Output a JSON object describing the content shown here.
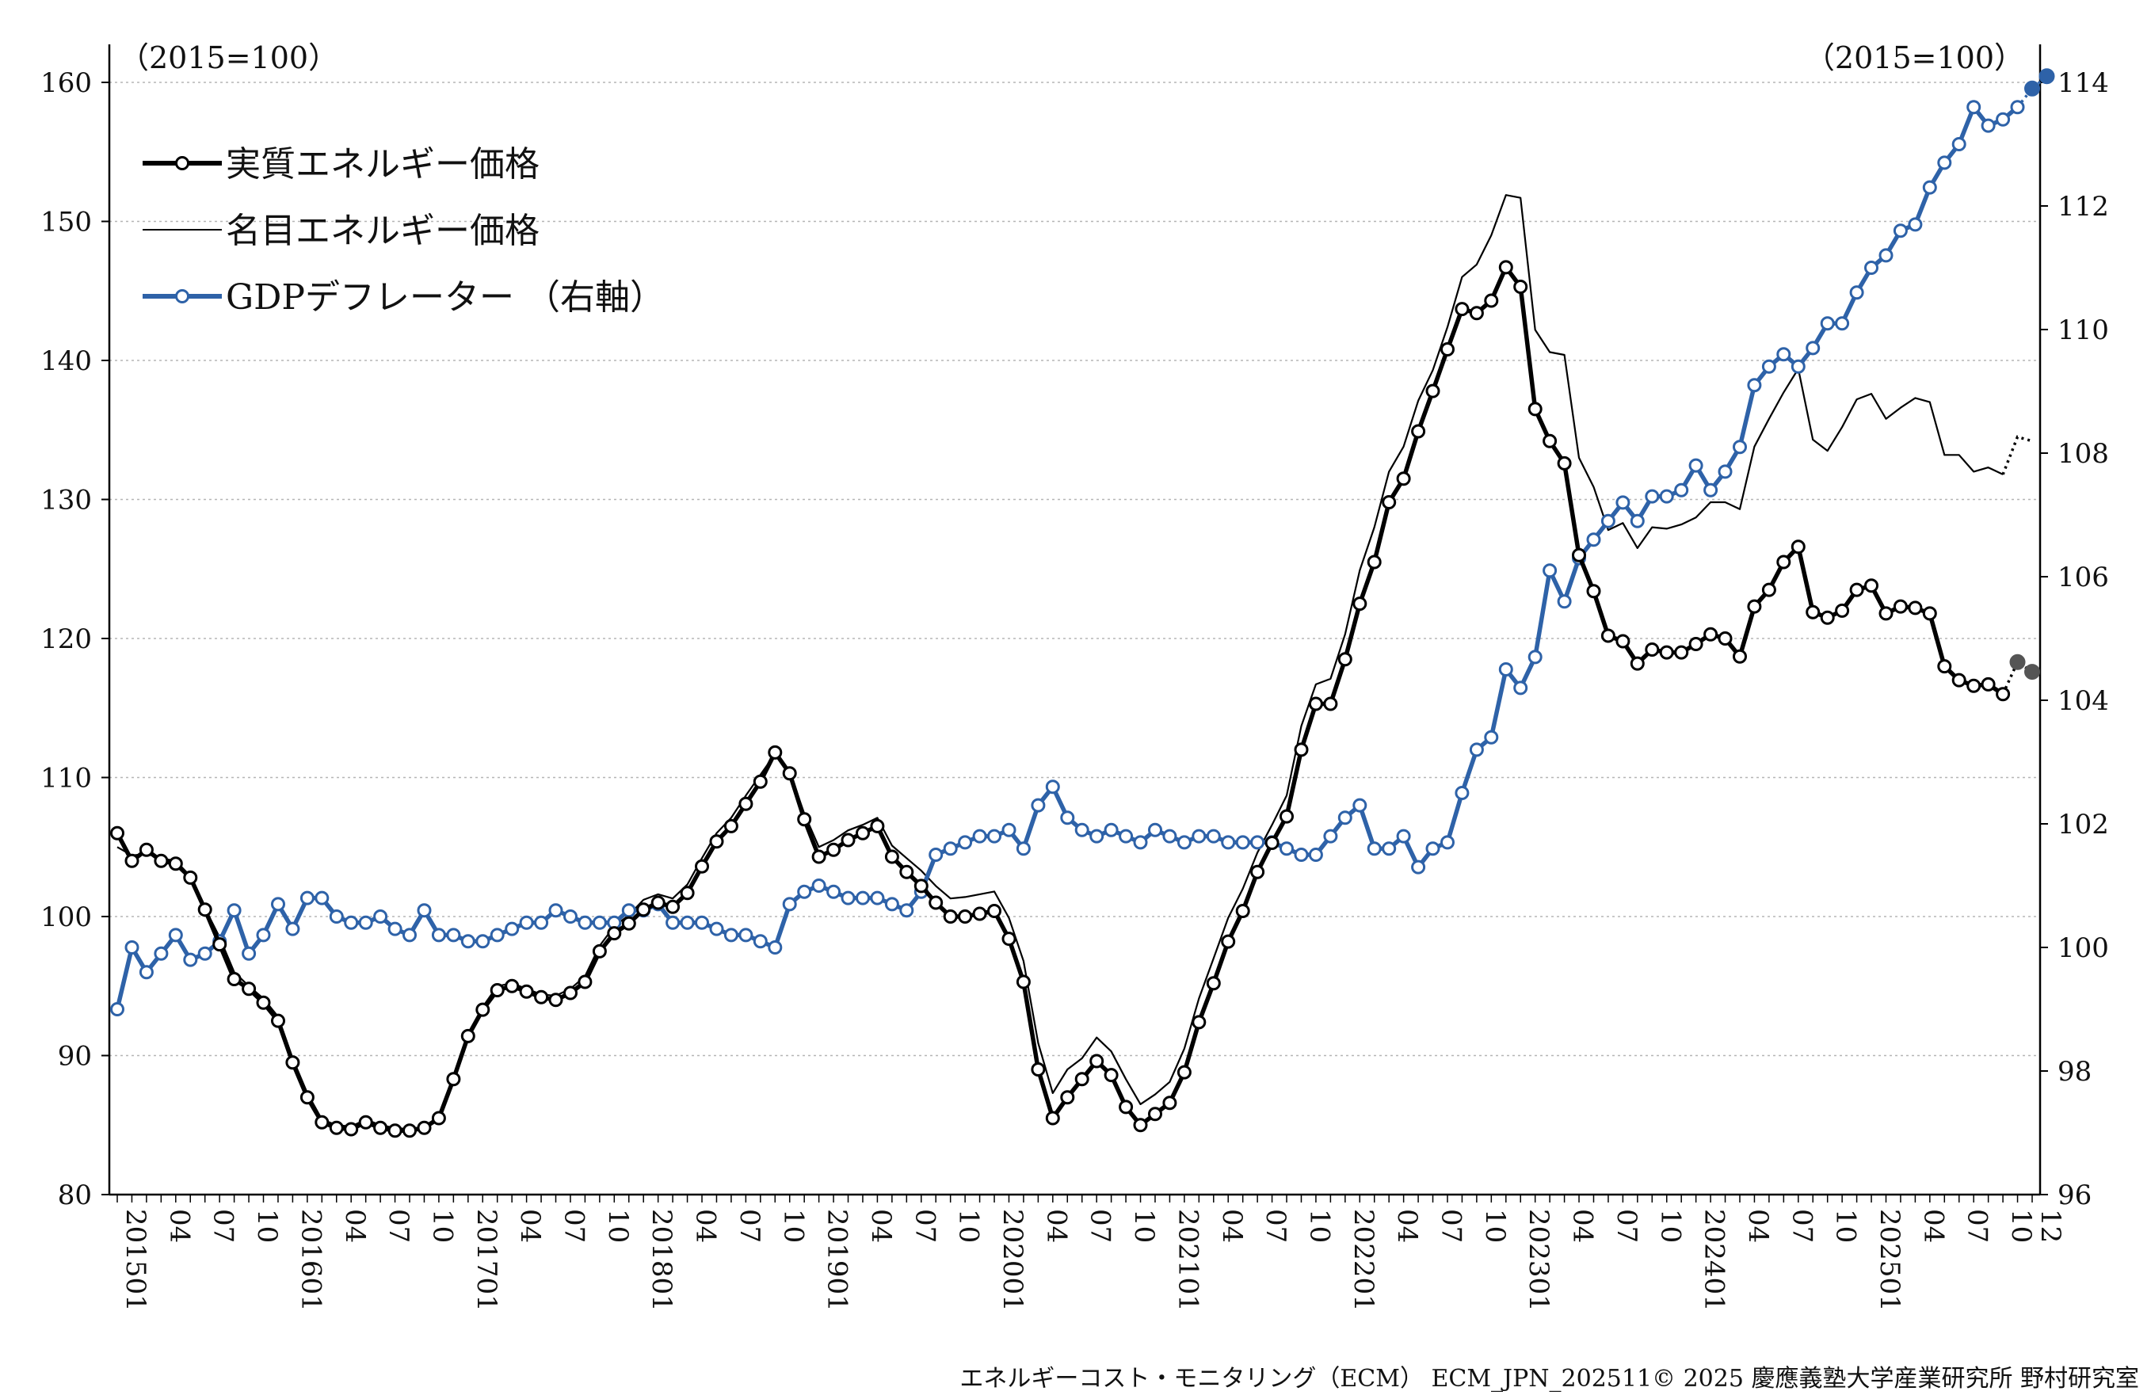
{
  "chart_data": {
    "type": "line",
    "left_unit": "（2015=100）",
    "right_unit": "（2015=100）",
    "left_axis": {
      "min": 80,
      "max": 160,
      "step": 10,
      "ticks": [
        "80",
        "90",
        "100",
        "110",
        "120",
        "130",
        "140",
        "150",
        "160"
      ]
    },
    "right_axis": {
      "min": 96,
      "max": 114,
      "step": 2,
      "ticks": [
        "96",
        "98",
        "100",
        "102",
        "104",
        "106",
        "108",
        "110",
        "112",
        "114"
      ]
    },
    "x_start": "2015-01",
    "x_end": "2025-12",
    "x_tick_labels": [
      "201501",
      "04",
      "07",
      "10",
      "201601",
      "04",
      "07",
      "10",
      "201701",
      "04",
      "07",
      "10",
      "201801",
      "04",
      "07",
      "10",
      "201901",
      "04",
      "07",
      "10",
      "202001",
      "04",
      "07",
      "10",
      "202101",
      "04",
      "07",
      "10",
      "202201",
      "04",
      "07",
      "10",
      "202301",
      "04",
      "07",
      "10",
      "202401",
      "04",
      "07",
      "10",
      "202501",
      "04",
      "07",
      "10",
      "12"
    ],
    "grid": "horizontal-dotted",
    "legend_position": "top-left",
    "series": [
      {
        "name": "実質エネルギー価格",
        "axis": "left",
        "color": "#000000",
        "values": [
          106,
          104,
          104.8,
          104,
          103.8,
          102.8,
          100.5,
          98,
          95.5,
          94.8,
          93.8,
          92.5,
          89.5,
          87,
          85.2,
          84.8,
          84.7,
          85.2,
          84.8,
          84.6,
          84.6,
          84.8,
          85.5,
          88.3,
          91.4,
          93.3,
          94.7,
          95,
          94.6,
          94.2,
          94,
          94.5,
          95.3,
          97.5,
          98.8,
          99.5,
          100.5,
          101,
          100.7,
          101.7,
          103.6,
          105.4,
          106.5,
          108.1,
          109.7,
          111.8,
          110.3,
          107,
          104.3,
          104.8,
          105.5,
          106,
          106.5,
          104.3,
          103.2,
          102.2,
          101,
          100,
          100,
          100.2,
          100.4,
          98.4,
          95.3,
          89,
          85.5,
          87,
          88.3,
          89.6,
          88.6,
          86.3,
          85,
          85.8,
          86.6,
          88.8,
          92.4,
          95.2,
          98.2,
          100.4,
          103.2,
          105.3,
          107.2,
          112,
          115.3,
          115.3,
          118.5,
          122.5,
          125.5,
          129.8,
          131.5,
          134.9,
          137.8,
          140.8,
          143.7,
          143.4,
          144.3,
          146.7,
          145.3,
          136.5,
          134.2,
          132.6,
          126,
          123.4,
          120.2,
          119.8,
          118.2,
          119.2,
          119,
          119,
          119.6,
          120.3,
          120,
          118.7,
          122.3,
          123.5,
          125.5,
          126.6,
          121.9,
          121.5,
          122,
          123.5,
          123.8,
          121.8,
          122.3,
          122.2,
          121.8,
          118,
          117,
          116.6,
          116.7,
          116
        ],
        "forecast": [
          118.3,
          117.6
        ]
      },
      {
        "name": "名目エネルギー価格",
        "axis": "left",
        "color": "#000000",
        "values": [
          105,
          104.4,
          104.5,
          104.2,
          104,
          102.9,
          100.6,
          98.5,
          96,
          95,
          94.1,
          92.8,
          89.8,
          87.3,
          85.4,
          85,
          84.9,
          85.4,
          85,
          84.8,
          84.7,
          84.9,
          85.6,
          88.4,
          91.6,
          93.5,
          95,
          95.2,
          94.8,
          94.4,
          94.3,
          94.8,
          95.7,
          97.9,
          99.3,
          100.1,
          101.2,
          101.6,
          101.3,
          102.3,
          104.2,
          106,
          107.1,
          108.7,
          110.2,
          111.7,
          110.4,
          107.4,
          105,
          105.5,
          106.2,
          106.6,
          107.1,
          105.1,
          104.2,
          103.3,
          102.2,
          101.3,
          101.4,
          101.6,
          101.8,
          99.9,
          96.8,
          90.9,
          87.3,
          89,
          89.8,
          91.3,
          90.3,
          88.3,
          86.5,
          87.2,
          88.1,
          90.5,
          94.1,
          97,
          99.9,
          102,
          104.6,
          106.6,
          108.7,
          113.7,
          116.7,
          117.1,
          120.3,
          124.9,
          128,
          132,
          133.8,
          137.1,
          139.3,
          142.4,
          146,
          146.9,
          149,
          151.9,
          151.7,
          142.2,
          140.6,
          140.4,
          133,
          130.9,
          127.8,
          128.3,
          126.5,
          128,
          127.9,
          128.2,
          128.7,
          129.8,
          129.8,
          129.3,
          133.8,
          135.8,
          137.7,
          139.4,
          134.3,
          133.5,
          135.2,
          137.2,
          137.6,
          135.8,
          136.6,
          137.3,
          137,
          133.2,
          133.2,
          132,
          132.3,
          131.8
        ],
        "forecast": [
          134.5,
          134.2
        ]
      },
      {
        "name": "GDPデフレーター （右軸）",
        "axis": "right",
        "color": "#2e62a8",
        "values": [
          99,
          100,
          99.6,
          99.9,
          100.2,
          99.8,
          99.9,
          100.1,
          100.6,
          99.9,
          100.2,
          100.7,
          100.3,
          100.8,
          100.8,
          100.5,
          100.4,
          100.4,
          100.5,
          100.3,
          100.2,
          100.6,
          100.2,
          100.2,
          100.1,
          100.1,
          100.2,
          100.3,
          100.4,
          100.4,
          100.6,
          100.5,
          100.4,
          100.4,
          100.4,
          100.6,
          100.6,
          100.7,
          100.4,
          100.4,
          100.4,
          100.3,
          100.2,
          100.2,
          100.1,
          100,
          100.7,
          100.9,
          101.0,
          100.9,
          100.8,
          100.8,
          100.8,
          100.7,
          100.6,
          100.9,
          101.5,
          101.6,
          101.7,
          101.8,
          101.8,
          101.9,
          101.6,
          102.3,
          102.6,
          102.1,
          101.9,
          101.8,
          101.9,
          101.8,
          101.7,
          101.9,
          101.8,
          101.7,
          101.8,
          101.8,
          101.7,
          101.7,
          101.7,
          101.7,
          101.6,
          101.5,
          101.5,
          101.8,
          102.1,
          102.3,
          101.6,
          101.6,
          101.8,
          101.3,
          101.6,
          101.7,
          102.5,
          103.2,
          103.4,
          104.5,
          104.2,
          104.7,
          106.1,
          105.6,
          106.3,
          106.6,
          106.9,
          107.2,
          106.9,
          107.3,
          107.3,
          107.4,
          107.8,
          107.4,
          107.7,
          108.1,
          109.1,
          109.4,
          109.6,
          109.4,
          109.7,
          110.1,
          110.1,
          110.6,
          111,
          111.2,
          111.6,
          111.7,
          112.3,
          112.7,
          113,
          113.6,
          113.3,
          113.4,
          113.6
        ],
        "forecast": [
          113.9,
          114.1
        ]
      }
    ],
    "footer": "エネルギーコスト・モニタリング（ECM） ECM_JPN_202511© 2025 慶應義塾大学産業研究所 野村研究室"
  }
}
